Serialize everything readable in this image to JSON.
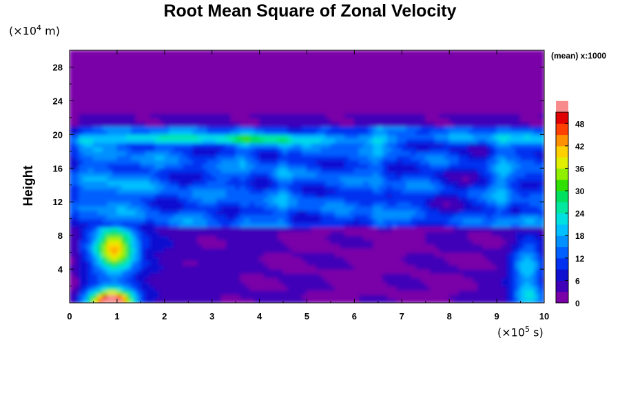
{
  "chart_data": {
    "type": "heatmap",
    "title": "Root Mean Square of Zonal Velocity",
    "ylabel": "Height",
    "xlabel": "",
    "x_unit_prefix": "(×10",
    "x_unit_exp": "5",
    "x_unit_suffix": " s)",
    "y_unit_prefix": "(×10",
    "y_unit_exp": "4",
    "y_unit_suffix": " m)",
    "annotation": "(mean) x:1000",
    "xlim": [
      0,
      10
    ],
    "ylim": [
      0,
      30
    ],
    "x_ticks": [
      "0",
      "1",
      "2",
      "3",
      "4",
      "5",
      "6",
      "7",
      "8",
      "9",
      "10"
    ],
    "y_ticks": [
      "4",
      "8",
      "12",
      "16",
      "20",
      "24",
      "28"
    ],
    "colorbar": {
      "range": [
        0,
        51
      ],
      "step": 3,
      "tick_values": [
        0,
        6,
        12,
        18,
        24,
        30,
        36,
        42,
        48
      ],
      "tick_labels": [
        "0",
        "6",
        "12",
        "18",
        "24",
        "30",
        "36",
        "42",
        "48"
      ],
      "colors": [
        "#7a00a8",
        "#4000b8",
        "#1010d0",
        "#0030f0",
        "#0060ff",
        "#0090ff",
        "#00c0ff",
        "#00e0e0",
        "#00e8a0",
        "#00e060",
        "#30e000",
        "#90f000",
        "#e0f000",
        "#ffd000",
        "#ff9000",
        "#ff4000",
        "#e00000",
        "#f88c8c"
      ]
    },
    "grid": false,
    "legend": "colorbar-right"
  }
}
